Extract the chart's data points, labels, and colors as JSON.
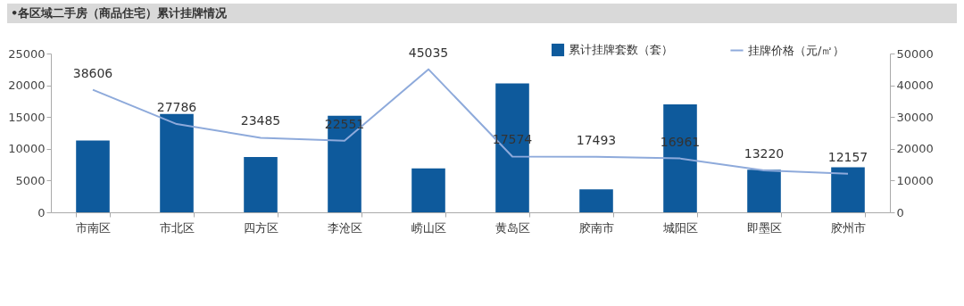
{
  "chart_data": {
    "type": "bar",
    "title": "•各区域二手房（商品住宅）累计挂牌情况",
    "categories": [
      "市南区",
      "市北区",
      "四方区",
      "李沧区",
      "崂山区",
      "黄岛区",
      "胶南市",
      "城阳区",
      "即墨区",
      "胶州市"
    ],
    "series": [
      {
        "name": "累计挂牌套数（套）",
        "color": "#0e5a9c",
        "values": [
          11300,
          15500,
          8700,
          15200,
          6900,
          20300,
          3600,
          17000,
          6700,
          7100
        ]
      },
      {
        "name": "挂牌价格（元/㎡）",
        "type": "line",
        "axis": "y2",
        "color": "#8eaadb",
        "values": [
          38606,
          27786,
          23485,
          22551,
          45035,
          17574,
          17493,
          16961,
          13220,
          12157
        ],
        "value_labels": [
          "38606",
          "27786",
          "23485",
          "22551",
          "45035",
          "17574",
          "17493",
          "16961",
          "13220",
          "12157"
        ]
      }
    ],
    "ylim": [
      0,
      25000
    ],
    "yticks": [
      0,
      5000,
      10000,
      15000,
      20000,
      25000
    ],
    "y2lim": [
      0,
      50000
    ],
    "y2ticks": [
      0,
      10000,
      20000,
      30000,
      40000,
      50000
    ],
    "legend": "top right",
    "marker": "none",
    "line_style": "solid"
  }
}
